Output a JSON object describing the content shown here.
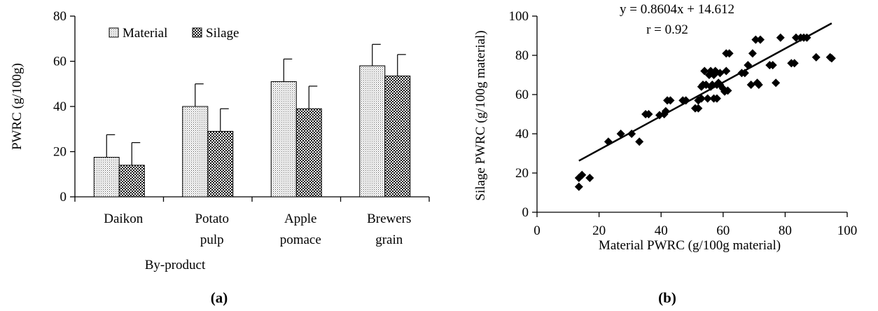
{
  "chart_data": [
    {
      "type": "bar",
      "panel_label": "(a)",
      "categories": [
        [
          "Daikon"
        ],
        [
          "Potato",
          "pulp"
        ],
        [
          "Apple",
          "pomace"
        ],
        [
          "Brewers",
          "grain"
        ]
      ],
      "series": [
        {
          "name": "Material",
          "values": [
            17.5,
            40,
            51,
            58
          ],
          "errors": [
            10,
            10,
            10,
            9.5
          ]
        },
        {
          "name": "Silage",
          "values": [
            14,
            29,
            39,
            53.5
          ],
          "errors": [
            10,
            10,
            10,
            9.5
          ]
        }
      ],
      "xlabel": "By-product",
      "ylabel": "PWRC (g/100g)",
      "ylim": [
        0,
        80
      ],
      "yticks": [
        "0",
        "20",
        "40",
        "60",
        "80"
      ],
      "legend_position": "top-left",
      "grid": false
    },
    {
      "type": "scatter",
      "panel_label": "(b)",
      "xlabel": "Material PWRC (g/100g material)",
      "ylabel": "Silage PWRC (g/100g material)",
      "xlim": [
        0,
        100
      ],
      "ylim": [
        0,
        100
      ],
      "xticks": [
        "0",
        "20",
        "40",
        "60",
        "80",
        "100"
      ],
      "yticks": [
        "0",
        "20",
        "40",
        "60",
        "80",
        "100"
      ],
      "equation": "y = 0.8604x + 14.612",
      "r_text": "r = 0.92",
      "trendline": {
        "slope": 0.8604,
        "intercept": 14.612,
        "x_range": [
          13.5,
          95
        ]
      },
      "grid": false,
      "points": [
        [
          13.5,
          13
        ],
        [
          13.5,
          17.5
        ],
        [
          14.5,
          19
        ],
        [
          17,
          17.5
        ],
        [
          23,
          36
        ],
        [
          27,
          40
        ],
        [
          30.5,
          40
        ],
        [
          33,
          36
        ],
        [
          35,
          50
        ],
        [
          36,
          50
        ],
        [
          39.5,
          49.5
        ],
        [
          41,
          50
        ],
        [
          41.5,
          51.5
        ],
        [
          42,
          57
        ],
        [
          43,
          57
        ],
        [
          47,
          57
        ],
        [
          48,
          57
        ],
        [
          51,
          53
        ],
        [
          52,
          53
        ],
        [
          52,
          57
        ],
        [
          53,
          58
        ],
        [
          53,
          64
        ],
        [
          53.5,
          65
        ],
        [
          54,
          72
        ],
        [
          54.5,
          65
        ],
        [
          55,
          58
        ],
        [
          55.5,
          70
        ],
        [
          56,
          72
        ],
        [
          56,
          64
        ],
        [
          56.5,
          65
        ],
        [
          57,
          58
        ],
        [
          57,
          70
        ],
        [
          57.5,
          72
        ],
        [
          58,
          58
        ],
        [
          58,
          65
        ],
        [
          58.5,
          66
        ],
        [
          59,
          71
        ],
        [
          59,
          65
        ],
        [
          60,
          63
        ],
        [
          60.5,
          61.5
        ],
        [
          61,
          81
        ],
        [
          61,
          72
        ],
        [
          61.5,
          62
        ],
        [
          62,
          81
        ],
        [
          66,
          71
        ],
        [
          67,
          71
        ],
        [
          68,
          75
        ],
        [
          69,
          65
        ],
        [
          69.5,
          81
        ],
        [
          70.5,
          88
        ],
        [
          71,
          66
        ],
        [
          71.5,
          65
        ],
        [
          72,
          88
        ],
        [
          75,
          75
        ],
        [
          76,
          75
        ],
        [
          77,
          66
        ],
        [
          78.5,
          89
        ],
        [
          82,
          76
        ],
        [
          83,
          76
        ],
        [
          83.5,
          89
        ],
        [
          85,
          89
        ],
        [
          86,
          89
        ],
        [
          87,
          89
        ],
        [
          90,
          79
        ],
        [
          94.5,
          79
        ],
        [
          95,
          78.5
        ]
      ]
    }
  ]
}
